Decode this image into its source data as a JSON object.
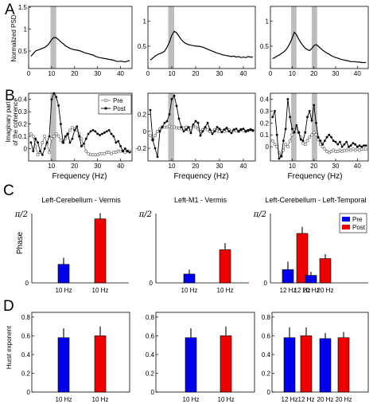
{
  "panel_letters": [
    "A",
    "B",
    "C",
    "D"
  ],
  "rowA": {
    "ylabel": "Normalized PSD",
    "xticks": [
      0,
      10,
      20,
      30,
      40
    ],
    "panels": [
      {
        "name": "Left-Cerebellum - Vermis",
        "yticks": [
          0.5,
          1,
          1.5
        ],
        "ylim": [
          0.1,
          1.52
        ],
        "shade": [
          [
            9.5,
            12
          ]
        ],
        "x": [
          1,
          2,
          3,
          4,
          5,
          6,
          7,
          8,
          9,
          10,
          11,
          12,
          13,
          14,
          15,
          16,
          17,
          18,
          19,
          20,
          21,
          22,
          23,
          24,
          25,
          26,
          27,
          28,
          29,
          30,
          31,
          32,
          33,
          34,
          35,
          36,
          37,
          38,
          39,
          40,
          41,
          42,
          43,
          44
        ],
        "y": [
          0.38,
          0.44,
          0.5,
          0.52,
          0.54,
          0.56,
          0.58,
          0.62,
          0.68,
          0.76,
          0.81,
          0.8,
          0.76,
          0.71,
          0.67,
          0.62,
          0.59,
          0.56,
          0.54,
          0.53,
          0.52,
          0.51,
          0.49,
          0.47,
          0.45,
          0.44,
          0.42,
          0.41,
          0.38,
          0.36,
          0.35,
          0.34,
          0.33,
          0.32,
          0.31,
          0.3,
          0.29,
          0.27,
          0.26,
          0.27,
          0.26,
          0.25,
          0.27,
          0.28
        ]
      },
      {
        "name": "Left-M1 - Vermis",
        "yticks": [
          0.5,
          1
        ],
        "ylim": [
          0.05,
          1.3
        ],
        "shade": [
          [
            8.5,
            11
          ]
        ],
        "x": [
          1,
          2,
          3,
          4,
          5,
          6,
          7,
          8,
          9,
          10,
          11,
          12,
          13,
          14,
          15,
          16,
          17,
          18,
          19,
          20,
          21,
          22,
          23,
          24,
          25,
          26,
          27,
          28,
          29,
          30,
          31,
          32,
          33,
          34,
          35,
          36,
          37,
          38,
          39,
          40,
          41,
          42,
          43,
          44
        ],
        "y": [
          0.22,
          0.26,
          0.3,
          0.33,
          0.35,
          0.37,
          0.4,
          0.48,
          0.58,
          0.72,
          0.8,
          0.77,
          0.7,
          0.63,
          0.58,
          0.55,
          0.53,
          0.52,
          0.51,
          0.5,
          0.5,
          0.49,
          0.48,
          0.46,
          0.44,
          0.42,
          0.4,
          0.38,
          0.36,
          0.35,
          0.33,
          0.32,
          0.31,
          0.3,
          0.29,
          0.3,
          0.28,
          0.29,
          0.27,
          0.28,
          0.27,
          0.29,
          0.28,
          0.28
        ]
      },
      {
        "name": "Left-Cerebellum - Left-Temporal",
        "yticks": [
          0.5,
          1
        ],
        "ylim": [
          0.05,
          1.3
        ],
        "shade": [
          [
            9.5,
            12
          ],
          [
            19,
            21.5
          ]
        ],
        "x": [
          1,
          2,
          3,
          4,
          5,
          6,
          7,
          8,
          9,
          10,
          11,
          12,
          13,
          14,
          15,
          16,
          17,
          18,
          19,
          20,
          21,
          22,
          23,
          24,
          25,
          26,
          27,
          28,
          29,
          30,
          31,
          32,
          33,
          34,
          35,
          36,
          37,
          38,
          39,
          40,
          41,
          42,
          43,
          44
        ],
        "y": [
          0.25,
          0.27,
          0.3,
          0.32,
          0.35,
          0.38,
          0.42,
          0.48,
          0.56,
          0.66,
          0.78,
          0.73,
          0.64,
          0.57,
          0.51,
          0.46,
          0.43,
          0.41,
          0.45,
          0.51,
          0.53,
          0.5,
          0.46,
          0.42,
          0.39,
          0.36,
          0.34,
          0.31,
          0.29,
          0.27,
          0.26,
          0.24,
          0.23,
          0.22,
          0.21,
          0.2,
          0.19,
          0.19,
          0.19,
          0.18,
          0.18,
          0.17,
          0.17,
          0.17
        ]
      }
    ]
  },
  "rowB": {
    "ylabel_line1": "Imaginary part",
    "ylabel_line2": "of the coherence",
    "xlabel": "Frequency (Hz)",
    "xticks": [
      10,
      20,
      30,
      40
    ],
    "legend": [
      "Pre",
      "Post"
    ],
    "panels": [
      {
        "yticks": [
          0,
          0.1,
          0.2,
          0.3,
          0.4
        ],
        "ytick_labels": [
          "0",
          "0.1",
          "0.2",
          "0.3",
          "0.4"
        ],
        "ylim": [
          -0.1,
          0.45
        ],
        "shade": [
          [
            9.5,
            12
          ]
        ],
        "x": [
          1,
          2,
          3,
          4,
          5,
          6,
          7,
          8,
          9,
          10,
          11,
          12,
          13,
          14,
          15,
          16,
          17,
          18,
          19,
          20,
          21,
          22,
          23,
          24,
          25,
          26,
          27,
          28,
          29,
          30,
          31,
          32,
          33,
          34,
          35,
          36,
          37,
          38,
          39,
          40,
          41,
          42,
          43,
          44
        ],
        "pre": [
          0.12,
          0.1,
          0.02,
          -0.05,
          -0.03,
          0.05,
          0.1,
          0.04,
          -0.03,
          0.08,
          0.1,
          0.12,
          0.1,
          0.07,
          0.05,
          0.08,
          0.12,
          0.15,
          0.17,
          0.16,
          0.15,
          0.12,
          0.08,
          0.03,
          -0.02,
          -0.04,
          -0.05,
          -0.05,
          -0.05,
          -0.05,
          -0.04,
          -0.04,
          -0.04,
          -0.03,
          -0.03,
          -0.04,
          -0.03,
          -0.03,
          -0.02,
          -0.02,
          -0.02,
          -0.03,
          -0.02,
          -0.02
        ],
        "post": [
          0.05,
          -0.02,
          0.08,
          0.05,
          -0.02,
          -0.05,
          0.0,
          0.05,
          0.1,
          0.4,
          0.45,
          0.42,
          0.35,
          0.2,
          0.05,
          0.1,
          0.12,
          0.05,
          0.08,
          0.15,
          0.18,
          0.1,
          0.02,
          0.04,
          0.08,
          0.12,
          0.14,
          0.15,
          0.14,
          0.12,
          0.11,
          0.12,
          0.13,
          0.14,
          0.15,
          0.12,
          0.1,
          0.05,
          0.06,
          0.02,
          -0.02,
          0.0,
          -0.02,
          -0.03
        ]
      },
      {
        "yticks": [
          -0.2,
          0,
          0.2
        ],
        "ytick_labels": [
          "-0.2",
          "0",
          "0.2"
        ],
        "ylim": [
          -0.35,
          0.45
        ],
        "shade": [
          [
            8.5,
            11
          ]
        ],
        "x": [
          1,
          2,
          3,
          4,
          5,
          6,
          7,
          8,
          9,
          10,
          11,
          12,
          13,
          14,
          15,
          16,
          17,
          18,
          19,
          20,
          21,
          22,
          23,
          24,
          25,
          26,
          27,
          28,
          29,
          30,
          31,
          32,
          33,
          34,
          35,
          36,
          37,
          38,
          39,
          40,
          41,
          42,
          43,
          44
        ],
        "pre": [
          -0.05,
          -0.1,
          -0.05,
          0.0,
          0.03,
          0.05,
          0.05,
          0.05,
          0.06,
          0.05,
          0.05,
          0.04,
          0.04,
          0.03,
          0.04,
          0.05,
          0.02,
          0.04,
          0.06,
          0.05,
          0.03,
          0.0,
          0.02,
          0.04,
          0.02,
          0.0,
          0.0,
          0.02,
          0.01,
          0.0,
          0.01,
          0.0,
          0.01,
          0.02,
          0.0,
          0.01,
          0.01,
          0.0,
          0.02,
          0.01,
          0.0,
          0.01,
          0.02,
          0.01
        ],
        "post": [
          0.25,
          -0.1,
          -0.2,
          -0.3,
          0.0,
          0.05,
          0.1,
          0.12,
          0.2,
          0.38,
          0.42,
          0.3,
          0.15,
          0.05,
          0.0,
          0.02,
          0.05,
          -0.02,
          0.08,
          0.12,
          0.1,
          -0.05,
          0.0,
          0.05,
          0.1,
          0.02,
          -0.03,
          0.0,
          0.05,
          0.03,
          -0.01,
          0.02,
          0.04,
          0.0,
          -0.02,
          0.02,
          0.03,
          0.0,
          0.02,
          0.03,
          0.0,
          0.01,
          0.02,
          0.01
        ]
      },
      {
        "yticks": [
          0,
          0.1,
          0.2,
          0.3,
          0.4
        ],
        "ytick_labels": [
          "0",
          "0.1",
          "0.2",
          "0.3",
          "0.4"
        ],
        "ylim": [
          -0.12,
          0.45
        ],
        "shade": [
          [
            9.5,
            12
          ],
          [
            19,
            21.5
          ]
        ],
        "x": [
          1,
          2,
          3,
          4,
          5,
          6,
          7,
          8,
          9,
          10,
          11,
          12,
          13,
          14,
          15,
          16,
          17,
          18,
          19,
          20,
          21,
          22,
          23,
          24,
          25,
          26,
          27,
          28,
          29,
          30,
          31,
          32,
          33,
          34,
          35,
          36,
          37,
          38,
          39,
          40,
          41,
          42,
          43,
          44
        ],
        "pre": [
          0.05,
          0.02,
          0.0,
          -0.05,
          -0.08,
          -0.03,
          0.02,
          0.0,
          0.05,
          0.1,
          0.14,
          0.16,
          0.12,
          0.08,
          0.03,
          0.02,
          0.05,
          0.08,
          0.1,
          0.12,
          0.1,
          0.06,
          0.02,
          0.0,
          -0.02,
          -0.04,
          -0.05,
          -0.04,
          -0.03,
          -0.04,
          -0.04,
          -0.03,
          -0.04,
          -0.03,
          -0.03,
          -0.02,
          -0.03,
          -0.02,
          -0.03,
          -0.02,
          -0.03,
          -0.02,
          -0.02,
          -0.02
        ],
        "post": [
          0.25,
          0.3,
          0.1,
          -0.1,
          -0.08,
          0.05,
          0.15,
          0.4,
          0.25,
          0.15,
          0.12,
          0.18,
          0.12,
          0.06,
          0.05,
          0.12,
          0.25,
          0.3,
          0.22,
          0.35,
          0.2,
          0.08,
          0.05,
          0.02,
          0.05,
          0.08,
          0.1,
          0.08,
          0.05,
          0.04,
          0.02,
          0.04,
          0.0,
          0.02,
          0.04,
          0.0,
          0.01,
          0.03,
          0.02,
          0.0,
          0.01,
          0.0,
          0.01,
          0.01
        ]
      }
    ]
  },
  "rowC": {
    "ylabel": "Phase",
    "ymax_label": "π/2",
    "ytick_zero": "0",
    "legend": [
      "Pre",
      "Post"
    ],
    "colors": {
      "pre": "#0000ee",
      "post": "#ee0000"
    },
    "panels": [
      {
        "title": "Left-Cerebellum - Vermis",
        "ylim": [
          0,
          1.5708
        ],
        "groups": [
          {
            "label": "10 Hz",
            "pre": 0.42,
            "pre_err": 0.15,
            "post_label": "10 Hz",
            "post": 1.45,
            "post_err": 0.13
          }
        ]
      },
      {
        "title": "Left-M1 - Vermis",
        "ylim": [
          0,
          1.5708
        ],
        "groups": [
          {
            "label": "10 Hz",
            "pre": 0.2,
            "pre_err": 0.1,
            "post_label": "10 Hz",
            "post": 0.75,
            "post_err": 0.15
          }
        ]
      },
      {
        "title": "Left-Cerebellum - Left-Temporal",
        "ylim": [
          0,
          1.5708
        ],
        "groups": [
          {
            "label": "12 Hz",
            "pre": 0.3,
            "pre_err": 0.18,
            "post_label": "12 Hz",
            "post": 1.12,
            "post_err": 0.15
          },
          {
            "label": "20 Hz",
            "pre": 0.17,
            "pre_err": 0.08,
            "post_label": "20 Hz",
            "post": 0.55,
            "post_err": 0.1
          }
        ]
      }
    ]
  },
  "rowD": {
    "ylabel": "Hurst exponent",
    "yticks": [
      0,
      0.2,
      0.4,
      0.6,
      0.8
    ],
    "ytick_labels": [
      "0",
      "0.2",
      "0.4",
      "0.6",
      "0.8"
    ],
    "colors": {
      "pre": "#0000ee",
      "post": "#ee0000"
    },
    "panels": [
      {
        "ylim": [
          0,
          0.85
        ],
        "groups": [
          {
            "label": "10 Hz",
            "pre": 0.58,
            "pre_err": 0.1,
            "post_label": "10 Hz",
            "post": 0.6,
            "post_err": 0.1
          }
        ]
      },
      {
        "ylim": [
          0,
          0.85
        ],
        "groups": [
          {
            "label": "10 Hz",
            "pre": 0.58,
            "pre_err": 0.1,
            "post_label": "10 Hz",
            "post": 0.6,
            "post_err": 0.1
          }
        ]
      },
      {
        "ylim": [
          0,
          0.85
        ],
        "groups": [
          {
            "label": "12 Hz",
            "pre": 0.58,
            "pre_err": 0.11,
            "post_label": "12 Hz",
            "post": 0.6,
            "post_err": 0.09
          },
          {
            "label": "20 Hz",
            "pre": 0.57,
            "pre_err": 0.06,
            "post_label": "20 Hz",
            "post": 0.58,
            "post_err": 0.06
          }
        ]
      }
    ]
  }
}
